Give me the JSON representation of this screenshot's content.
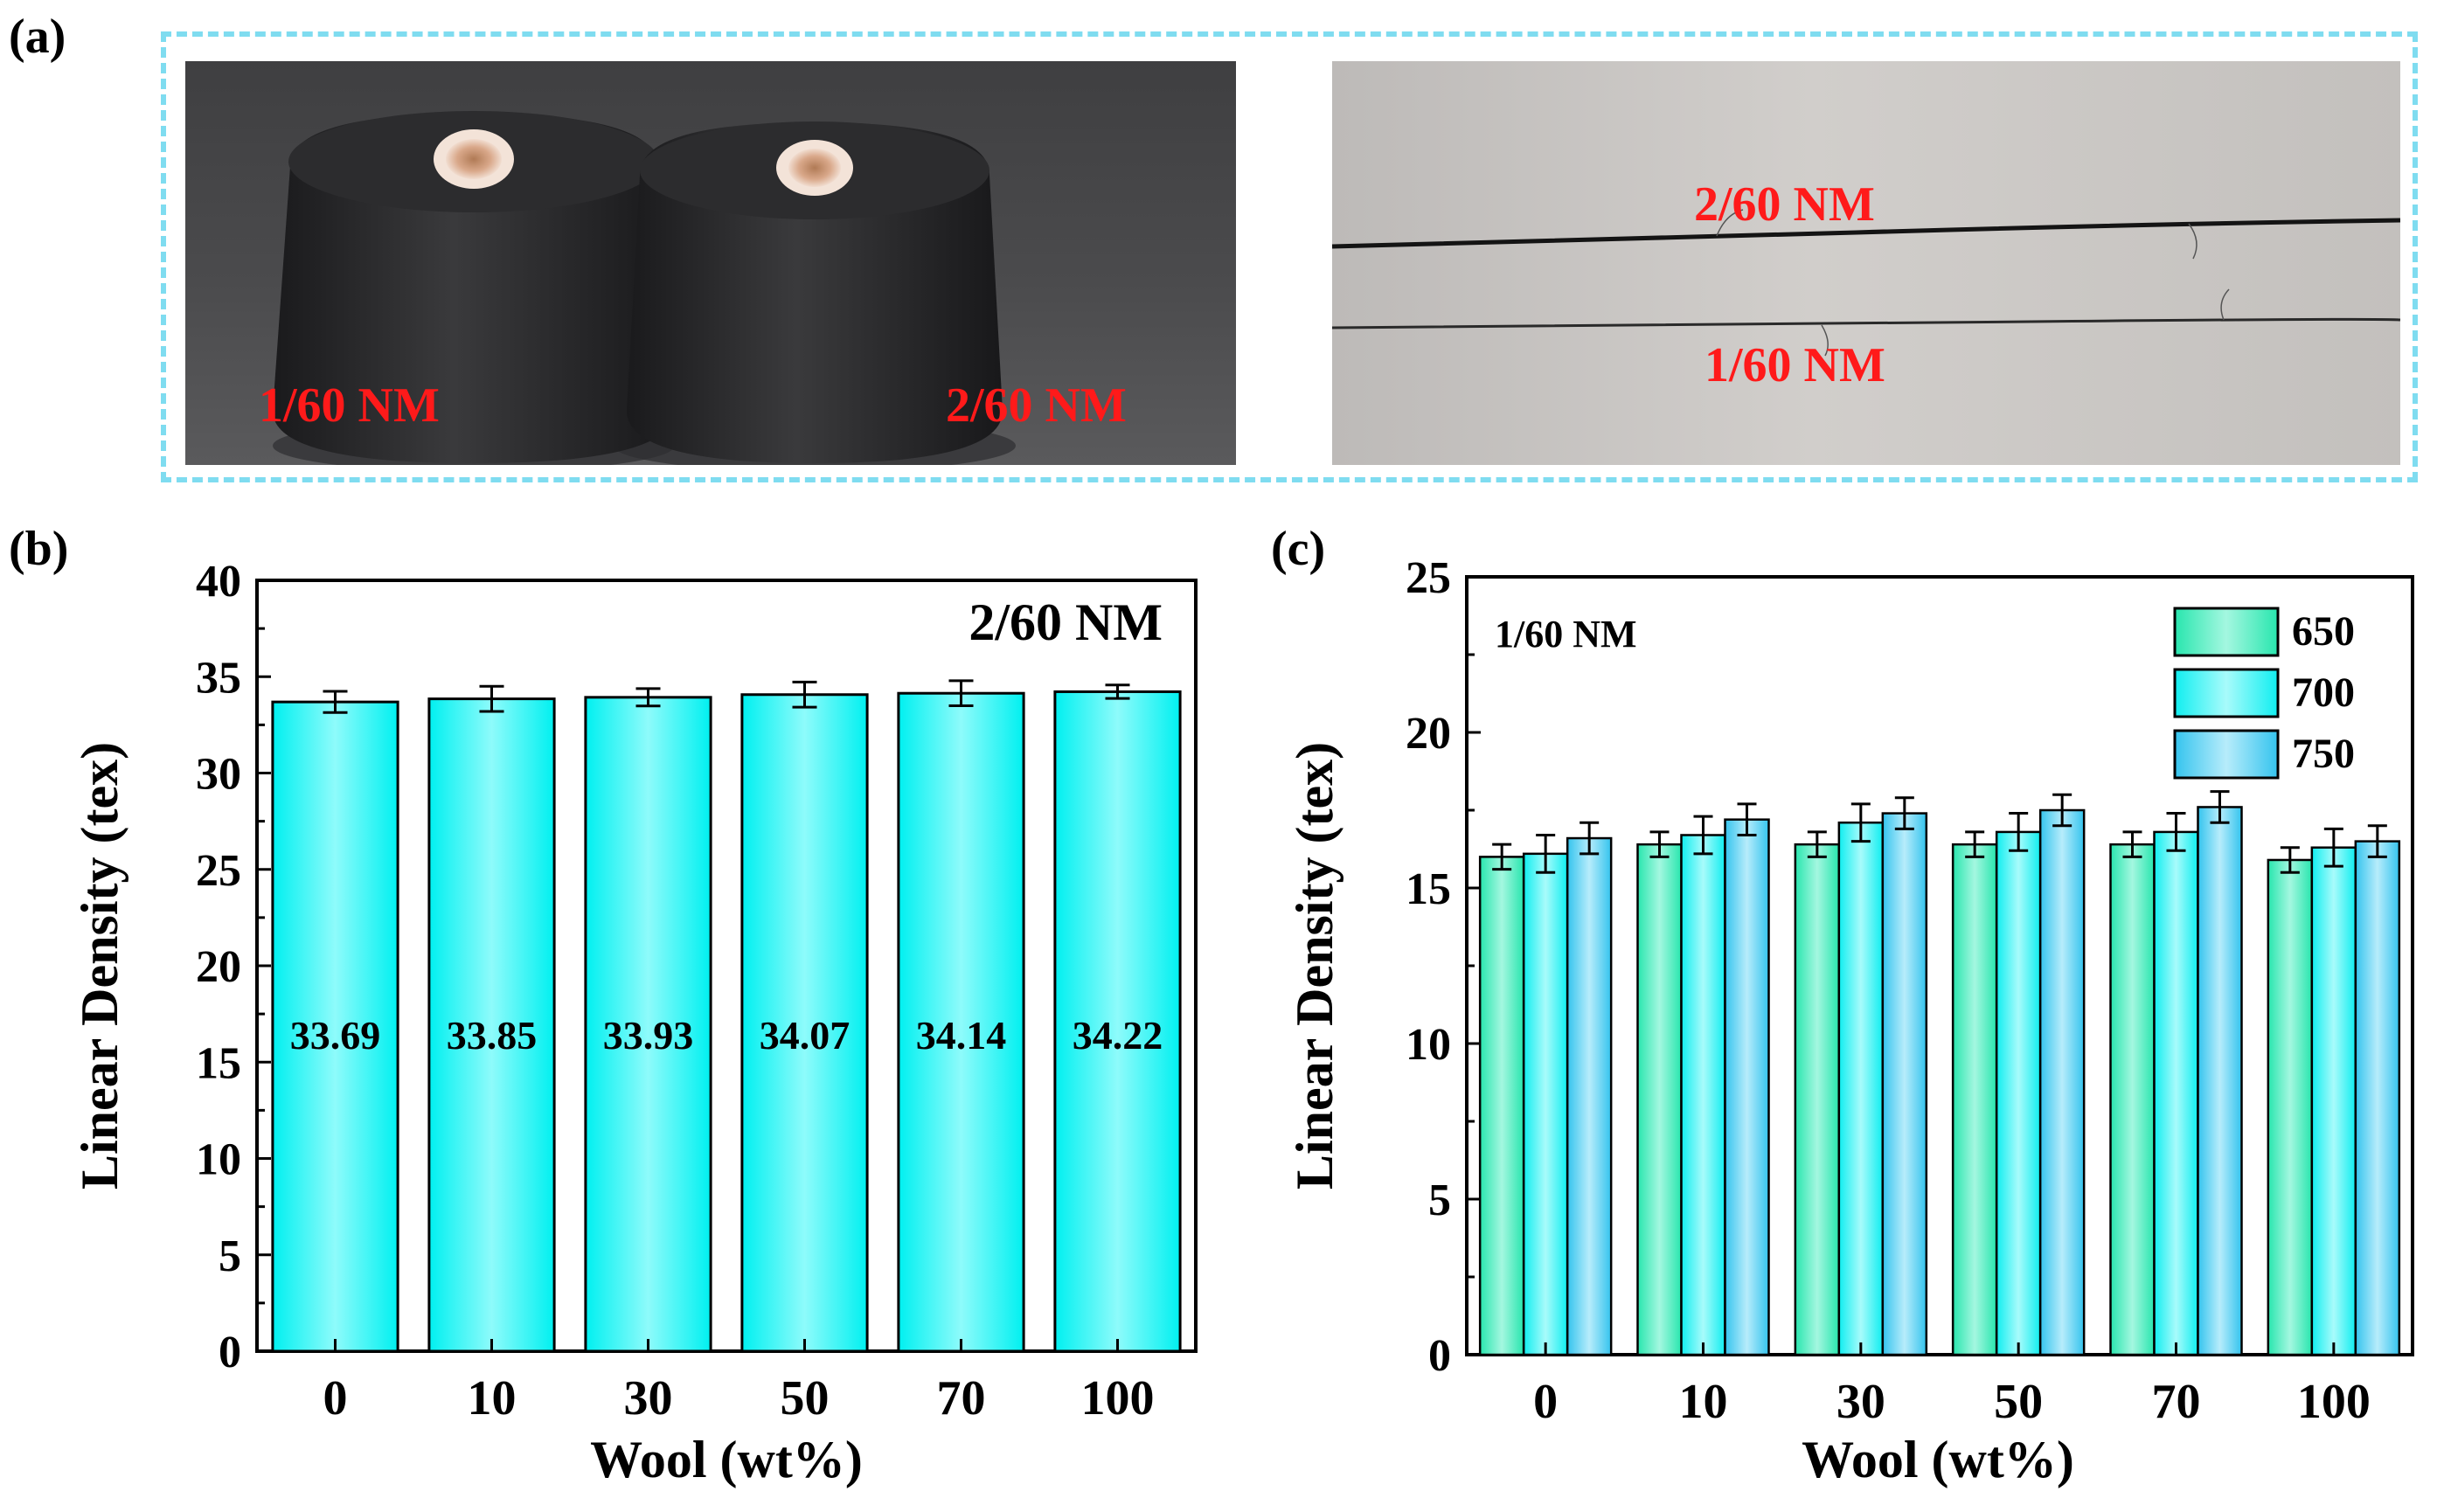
{
  "panels": {
    "a": "(a)",
    "b": "(b)",
    "c": "(c)"
  },
  "photos": {
    "left": {
      "label_1": "1/60 NM",
      "label_2": "2/60 NM"
    },
    "right": {
      "label_top": "2/60 NM",
      "label_bottom": "1/60 NM"
    }
  },
  "colors": {
    "red_label": "#ff1a1a",
    "frame": "#7fdcf0",
    "cyan": "#00f2f2",
    "green": "#2ee8b0",
    "sky": "#3cc8ee"
  },
  "chart_data": [
    {
      "type": "bar",
      "panel": "b",
      "annotation": "2/60 NM",
      "categories": [
        "0",
        "10",
        "30",
        "50",
        "70",
        "100"
      ],
      "values": [
        33.69,
        33.85,
        33.93,
        34.07,
        34.14,
        34.22
      ],
      "value_labels": [
        "33.69",
        "33.85",
        "33.93",
        "34.07",
        "34.14",
        "34.22"
      ],
      "errors": [
        0.55,
        0.65,
        0.45,
        0.65,
        0.65,
        0.35
      ],
      "xlabel": "Wool (wt%)",
      "ylabel": "Linear Density (tex)",
      "ylim": [
        0,
        40
      ],
      "yticks": [
        0,
        5,
        10,
        15,
        20,
        25,
        30,
        35,
        40
      ]
    },
    {
      "type": "bar",
      "panel": "c",
      "annotation": "1/60 NM",
      "categories": [
        "0",
        "10",
        "30",
        "50",
        "70",
        "100"
      ],
      "series": [
        {
          "name": "650",
          "values": [
            16.0,
            16.4,
            16.4,
            16.4,
            16.4,
            15.9
          ],
          "errors": [
            0.4,
            0.4,
            0.4,
            0.4,
            0.4,
            0.4
          ]
        },
        {
          "name": "700",
          "values": [
            16.1,
            16.7,
            17.1,
            16.8,
            16.8,
            16.3
          ],
          "errors": [
            0.6,
            0.6,
            0.6,
            0.6,
            0.6,
            0.6
          ]
        },
        {
          "name": "750",
          "values": [
            16.6,
            17.2,
            17.4,
            17.5,
            17.6,
            16.5
          ],
          "errors": [
            0.5,
            0.5,
            0.5,
            0.5,
            0.5,
            0.5
          ]
        }
      ],
      "legend_location": "top-right",
      "xlabel": "Wool (wt%)",
      "ylabel": "Linear Density (tex)",
      "ylim": [
        0,
        25
      ],
      "yticks": [
        0,
        5,
        10,
        15,
        20,
        25
      ]
    }
  ]
}
